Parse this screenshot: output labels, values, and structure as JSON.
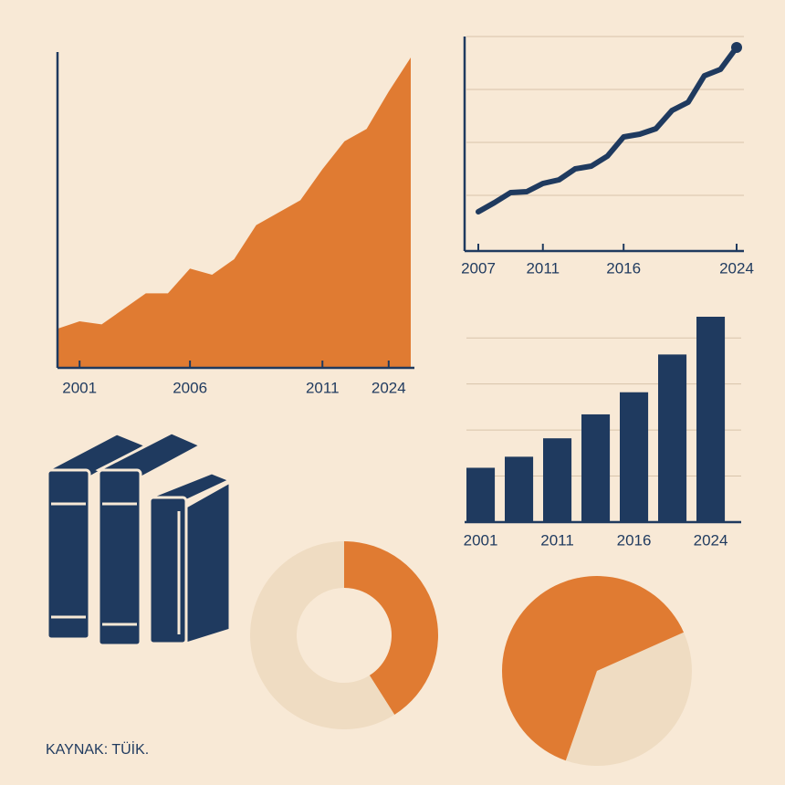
{
  "chart_data": [
    {
      "type": "area",
      "color": "#e07b32",
      "categories": [
        null,
        "2001",
        null,
        null,
        null,
        null,
        "2006",
        null,
        null,
        null,
        null,
        null,
        "2011",
        null,
        null,
        "2024",
        null
      ],
      "values": [
        12.6,
        15,
        14,
        19,
        24,
        24,
        32,
        30,
        35,
        46,
        50,
        54,
        64,
        73,
        77,
        89,
        100
      ],
      "ylim": [
        0,
        100
      ]
    },
    {
      "type": "line",
      "color": "#1f3a5f",
      "categories": [
        "2007",
        null,
        null,
        null,
        "2011",
        null,
        null,
        null,
        null,
        "2016",
        null,
        null,
        null,
        null,
        null,
        null,
        "2024"
      ],
      "values": [
        43,
        53,
        64,
        65,
        74,
        78,
        90,
        93,
        104,
        125,
        128,
        134,
        154,
        163,
        192,
        199,
        223
      ],
      "ylim": [
        0,
        235
      ],
      "yticks": [
        61,
        119,
        177,
        235
      ],
      "grid": true
    },
    {
      "type": "bar",
      "color": "#1f3a5f",
      "categories": [
        "2001",
        null,
        "2011",
        null,
        "2016",
        null,
        "2024"
      ],
      "values": [
        59,
        71,
        91,
        117,
        141,
        182,
        223
      ],
      "ylim": [
        0,
        223
      ],
      "yticks": [
        50,
        100,
        150,
        200
      ],
      "grid": true
    },
    {
      "type": "donut",
      "values": [
        41,
        59
      ],
      "colors": [
        "#e07b32",
        "#efdcc2"
      ]
    },
    {
      "type": "pie",
      "values": [
        37,
        63
      ],
      "colors": [
        "#efdcc2",
        "#e07b32"
      ]
    }
  ],
  "source": "KAYNAK: TÜİK."
}
